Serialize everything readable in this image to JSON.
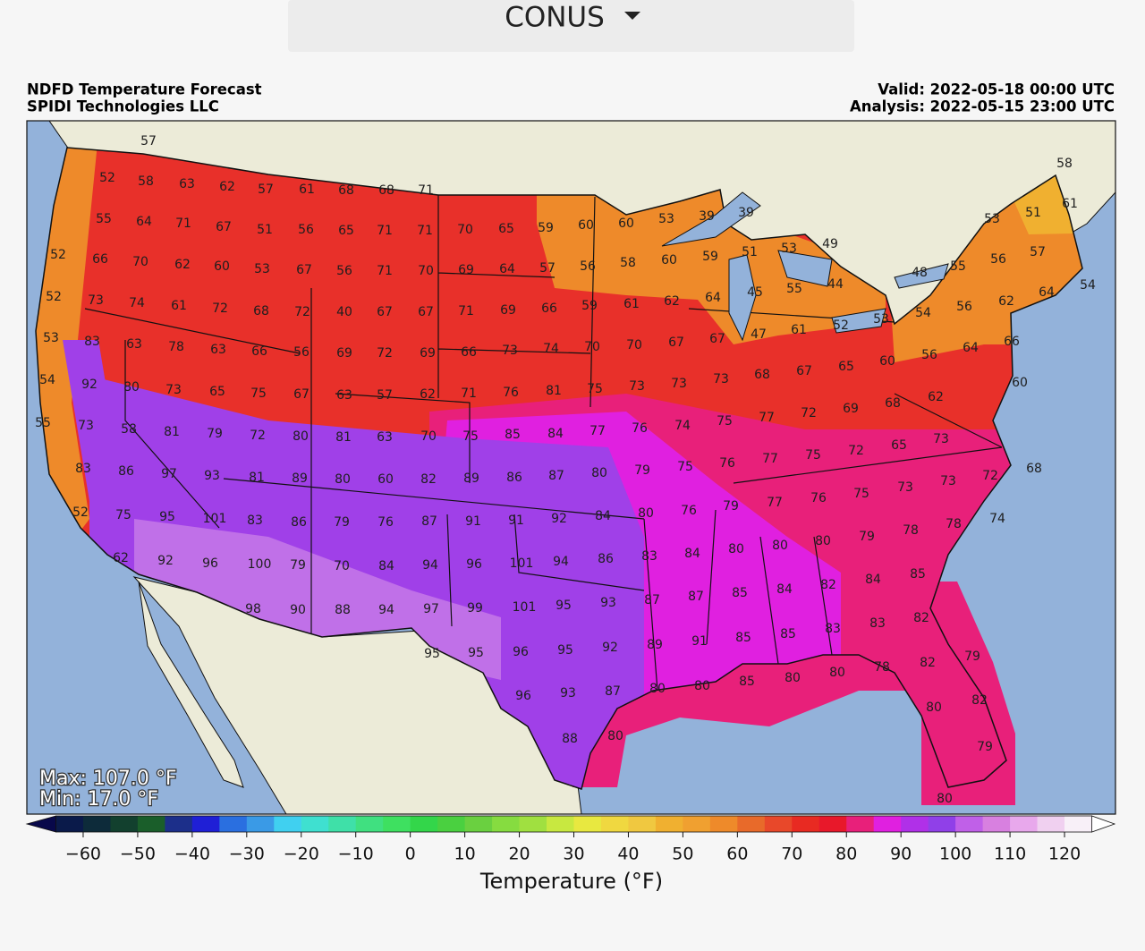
{
  "header": {
    "menu": "CONUS"
  },
  "map": {
    "title": "NDFD Temperature Forecast",
    "subtitle": "SPIDI Technologies LLC",
    "valid": "Valid: 2022-05-18 00:00 UTC",
    "analysis": "Analysis: 2022-05-15 23:00 UTC",
    "max": "Max: 107.0 °F",
    "min": "Min: 17.0 °F",
    "labels": [
      57,
      52,
      58,
      63,
      62,
      57,
      61,
      68,
      68,
      71,
      55,
      64,
      71,
      67,
      51,
      56,
      65,
      71,
      71,
      70,
      65,
      59,
      60,
      60,
      53,
      39,
      39,
      52,
      66,
      70,
      62,
      60,
      53,
      67,
      56,
      71,
      70,
      69,
      64,
      57,
      56,
      58,
      60,
      59,
      51,
      53,
      49,
      48,
      55,
      56,
      57,
      51,
      53,
      61,
      58,
      52,
      73,
      74,
      61,
      72,
      68,
      72,
      40,
      67,
      67,
      71,
      69,
      66,
      59,
      61,
      62,
      64,
      45,
      55,
      44,
      54,
      56,
      62,
      64,
      54,
      53,
      83,
      63,
      78,
      63,
      66,
      56,
      69,
      72,
      69,
      66,
      73,
      74,
      70,
      70,
      67,
      67,
      47,
      61,
      52,
      53,
      64,
      66,
      54,
      92,
      80,
      73,
      65,
      75,
      67,
      63,
      57,
      62,
      71,
      76,
      81,
      75,
      73,
      73,
      73,
      68,
      67,
      65,
      60,
      56,
      60,
      55,
      73,
      58,
      81,
      79,
      72,
      80,
      81,
      63,
      70,
      75,
      85,
      84,
      77,
      76,
      74,
      75,
      77,
      72,
      69,
      68,
      62,
      83,
      86,
      97,
      93,
      81,
      89,
      80,
      60,
      82,
      89,
      86,
      87,
      80,
      79,
      75,
      76,
      77,
      75,
      72,
      65,
      73,
      72,
      68,
      52,
      75,
      95,
      101,
      83,
      86,
      79,
      76,
      87,
      91,
      91,
      92,
      84,
      80,
      76,
      79,
      77,
      76,
      75,
      73,
      73,
      74,
      62,
      92,
      96,
      100,
      79,
      70,
      84,
      94,
      96,
      101,
      94,
      86,
      83,
      84,
      80,
      80,
      80,
      79,
      78,
      78,
      98,
      90,
      88,
      94,
      97,
      99,
      101,
      95,
      93,
      87,
      87,
      85,
      84,
      82,
      84,
      85,
      95,
      95,
      96,
      95,
      92,
      89,
      91,
      85,
      85,
      83,
      83,
      82,
      96,
      93,
      87,
      80,
      80,
      85,
      80,
      80,
      78,
      82,
      79,
      88,
      80,
      80,
      82,
      79,
      80
    ]
  },
  "colorbar": {
    "label": "Temperature (°F)",
    "clim": [
      -65,
      125
    ],
    "ticks": [
      {
        "value": -60,
        "label": "−60"
      },
      {
        "value": -50,
        "label": "−50"
      },
      {
        "value": -40,
        "label": "−40"
      },
      {
        "value": -30,
        "label": "−30"
      },
      {
        "value": -20,
        "label": "−20"
      },
      {
        "value": -10,
        "label": "−10"
      },
      0,
      10,
      20,
      30,
      40,
      50,
      60,
      70,
      80,
      90,
      100,
      110,
      120
    ],
    "colors": [
      "#0a1a4a",
      "#0d2b3a",
      "#12402e",
      "#1a5e2a",
      "#1c2f8a",
      "#1f1fd6",
      "#2a6fe0",
      "#3a9ae6",
      "#40d0f0",
      "#3fe0d0",
      "#3fe0a8",
      "#40e080",
      "#3ee060",
      "#33d64a",
      "#4ad040",
      "#6ad040",
      "#86dc40",
      "#a0e040",
      "#c8e840",
      "#e8e840",
      "#f0d840",
      "#f0c840",
      "#f0b030",
      "#f0a030",
      "#ee8a2a",
      "#e86a2a",
      "#e8482a",
      "#e82a22",
      "#e8182a",
      "#e8207a",
      "#e020e0",
      "#b030e8",
      "#9040e8",
      "#c060e8",
      "#d880e0",
      "#e8a8ec",
      "#f0d0f0",
      "#f8f0f8"
    ],
    "extend_colors": [
      "#08084a",
      "#ffffff"
    ]
  }
}
